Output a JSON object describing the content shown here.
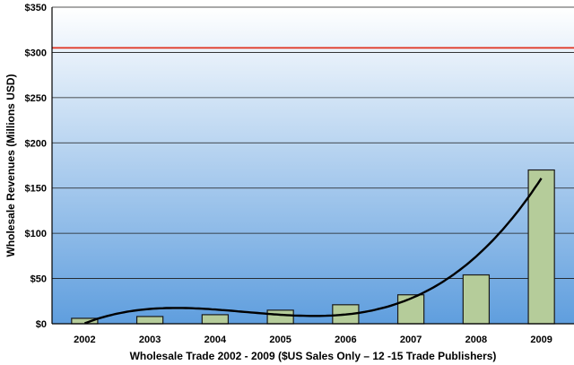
{
  "chart_data": {
    "type": "bar",
    "categories": [
      "2002",
      "2003",
      "2004",
      "2005",
      "2006",
      "2007",
      "2008",
      "2009"
    ],
    "values": [
      6,
      8,
      10,
      15,
      21,
      32,
      54,
      170
    ],
    "ylim": [
      0,
      350
    ],
    "yticks": [
      0,
      50,
      100,
      150,
      200,
      250,
      300,
      350
    ],
    "ytick_labels": [
      "$0",
      "$50",
      "$100",
      "$150",
      "$200",
      "$250",
      "$300",
      "$350"
    ],
    "ylabel": "Wholesale Revenues (Millions USD)",
    "xlabel": "Wholesale Trade 2002 - 2009  ($US Sales Only – 12 -15 Trade Publishers)",
    "reference_line": {
      "value": 305,
      "color": "#e0301e"
    },
    "trendline": {
      "type": "polynomial",
      "color": "#000000"
    },
    "grid": true,
    "legend": "none",
    "colors": {
      "bar_fill": "#b5cc9a",
      "bar_stroke": "#1a1a1a",
      "background_top": "#ffffff",
      "background_bottom": "#5f9ede"
    }
  }
}
